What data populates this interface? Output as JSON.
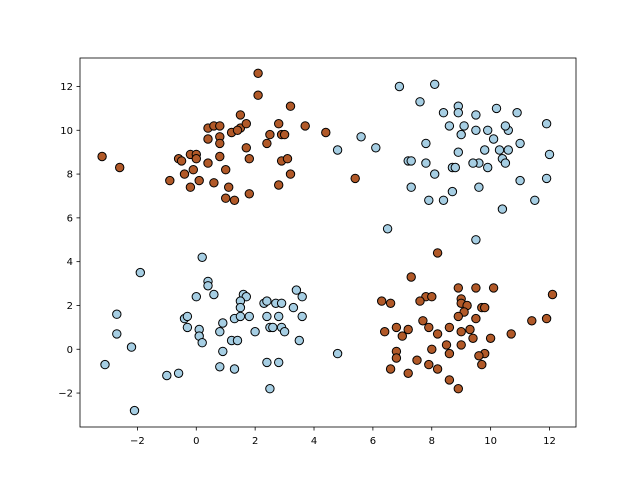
{
  "chart_data": {
    "type": "scatter",
    "xlim": [
      -3.95,
      12.9
    ],
    "ylim": [
      -3.55,
      13.3
    ],
    "x_ticks": [
      -2,
      0,
      2,
      4,
      6,
      8,
      10,
      12
    ],
    "y_ticks": [
      -2,
      0,
      2,
      4,
      6,
      8,
      10,
      12
    ],
    "x_tick_labels": [
      "−2",
      "0",
      "2",
      "4",
      "6",
      "8",
      "10",
      "12"
    ],
    "y_tick_labels": [
      "−2",
      "0",
      "2",
      "4",
      "6",
      "8",
      "10",
      "12"
    ],
    "grid": false,
    "marker_edge_color": "#000000",
    "series": [
      {
        "color": "#a6cee3",
        "points": [
          [
            6.9,
            12.0
          ],
          [
            8.1,
            12.1
          ],
          [
            7.6,
            11.3
          ],
          [
            8.9,
            11.1
          ],
          [
            8.9,
            10.8
          ],
          [
            9.5,
            10.7
          ],
          [
            10.2,
            11.0
          ],
          [
            10.9,
            10.8
          ],
          [
            8.4,
            10.8
          ],
          [
            8.6,
            10.2
          ],
          [
            9.1,
            10.2
          ],
          [
            9.5,
            10.0
          ],
          [
            9.9,
            10.0
          ],
          [
            10.6,
            10.0
          ],
          [
            10.5,
            10.2
          ],
          [
            11.9,
            10.3
          ],
          [
            9.0,
            9.8
          ],
          [
            10.1,
            9.6
          ],
          [
            10.3,
            9.1
          ],
          [
            11.0,
            9.4
          ],
          [
            9.8,
            9.1
          ],
          [
            10.6,
            9.1
          ],
          [
            12.0,
            8.9
          ],
          [
            5.6,
            9.7
          ],
          [
            4.8,
            9.1
          ],
          [
            6.1,
            9.2
          ],
          [
            7.8,
            9.4
          ],
          [
            8.9,
            9.0
          ],
          [
            7.2,
            8.6
          ],
          [
            7.3,
            8.6
          ],
          [
            7.8,
            8.5
          ],
          [
            9.6,
            8.5
          ],
          [
            9.4,
            8.5
          ],
          [
            10.4,
            8.7
          ],
          [
            10.5,
            8.5
          ],
          [
            8.7,
            8.3
          ],
          [
            8.8,
            8.3
          ],
          [
            9.9,
            8.3
          ],
          [
            8.1,
            8.0
          ],
          [
            11.9,
            7.8
          ],
          [
            11.0,
            7.7
          ],
          [
            9.6,
            7.4
          ],
          [
            7.3,
            7.4
          ],
          [
            8.7,
            7.2
          ],
          [
            7.9,
            6.8
          ],
          [
            8.4,
            6.8
          ],
          [
            11.5,
            6.8
          ],
          [
            10.4,
            6.4
          ],
          [
            6.5,
            5.5
          ],
          [
            9.5,
            5.0
          ],
          [
            0.2,
            4.2
          ],
          [
            -1.9,
            3.5
          ],
          [
            0.4,
            3.1
          ],
          [
            0.4,
            2.9
          ],
          [
            1.6,
            2.5
          ],
          [
            3.4,
            2.7
          ],
          [
            0.0,
            2.4
          ],
          [
            0.6,
            2.5
          ],
          [
            1.7,
            2.4
          ],
          [
            3.6,
            2.4
          ],
          [
            1.5,
            2.2
          ],
          [
            2.3,
            2.1
          ],
          [
            2.4,
            2.2
          ],
          [
            2.7,
            2.1
          ],
          [
            2.9,
            2.1
          ],
          [
            1.5,
            1.9
          ],
          [
            3.3,
            1.9
          ],
          [
            -2.7,
            1.6
          ],
          [
            -0.4,
            1.4
          ],
          [
            -0.3,
            1.5
          ],
          [
            1.3,
            1.4
          ],
          [
            1.5,
            1.5
          ],
          [
            1.8,
            1.5
          ],
          [
            2.4,
            1.5
          ],
          [
            2.8,
            1.5
          ],
          [
            3.6,
            1.5
          ],
          [
            0.9,
            1.2
          ],
          [
            -0.3,
            1.0
          ],
          [
            2.0,
            0.8
          ],
          [
            2.5,
            1.0
          ],
          [
            2.6,
            1.0
          ],
          [
            2.9,
            1.0
          ],
          [
            0.1,
            0.9
          ],
          [
            0.8,
            0.8
          ],
          [
            3.0,
            0.8
          ],
          [
            -2.7,
            0.7
          ],
          [
            0.1,
            0.6
          ],
          [
            1.2,
            0.4
          ],
          [
            1.4,
            0.4
          ],
          [
            3.5,
            0.4
          ],
          [
            0.2,
            0.3
          ],
          [
            -2.2,
            0.1
          ],
          [
            0.9,
            -0.1
          ],
          [
            4.8,
            -0.2
          ],
          [
            2.4,
            -0.6
          ],
          [
            2.8,
            -0.6
          ],
          [
            -3.1,
            -0.7
          ],
          [
            0.8,
            -0.8
          ],
          [
            1.3,
            -0.9
          ],
          [
            -1.0,
            -1.2
          ],
          [
            -0.6,
            -1.1
          ],
          [
            2.5,
            -1.8
          ],
          [
            -2.1,
            -2.8
          ]
        ]
      },
      {
        "color": "#b15928",
        "points": [
          [
            2.1,
            12.6
          ],
          [
            2.1,
            11.6
          ],
          [
            3.2,
            11.1
          ],
          [
            1.5,
            10.7
          ],
          [
            0.4,
            10.1
          ],
          [
            0.6,
            10.2
          ],
          [
            0.8,
            10.2
          ],
          [
            1.5,
            10.1
          ],
          [
            1.7,
            10.3
          ],
          [
            2.8,
            10.3
          ],
          [
            3.7,
            10.2
          ],
          [
            1.2,
            9.9
          ],
          [
            1.4,
            10.0
          ],
          [
            2.5,
            9.8
          ],
          [
            2.9,
            9.8
          ],
          [
            3.0,
            9.8
          ],
          [
            4.4,
            9.9
          ],
          [
            0.4,
            9.6
          ],
          [
            0.8,
            9.7
          ],
          [
            2.4,
            9.4
          ],
          [
            0.8,
            9.4
          ],
          [
            1.7,
            9.2
          ],
          [
            -0.2,
            8.9
          ],
          [
            0.0,
            8.9
          ],
          [
            0.0,
            8.7
          ],
          [
            0.8,
            8.8
          ],
          [
            1.8,
            8.7
          ],
          [
            -3.2,
            8.8
          ],
          [
            -0.6,
            8.7
          ],
          [
            -0.5,
            8.6
          ],
          [
            0.4,
            8.5
          ],
          [
            2.9,
            8.6
          ],
          [
            3.1,
            8.7
          ],
          [
            -2.6,
            8.3
          ],
          [
            -0.1,
            8.2
          ],
          [
            1.0,
            8.2
          ],
          [
            -0.4,
            8.0
          ],
          [
            3.2,
            8.0
          ],
          [
            5.4,
            7.8
          ],
          [
            -0.9,
            7.7
          ],
          [
            0.1,
            7.7
          ],
          [
            0.6,
            7.6
          ],
          [
            1.1,
            7.4
          ],
          [
            -0.2,
            7.4
          ],
          [
            2.8,
            7.5
          ],
          [
            1.8,
            7.1
          ],
          [
            1.0,
            6.9
          ],
          [
            1.3,
            6.8
          ],
          [
            8.2,
            4.4
          ],
          [
            7.3,
            3.3
          ],
          [
            8.9,
            2.8
          ],
          [
            9.5,
            2.8
          ],
          [
            10.1,
            2.8
          ],
          [
            12.1,
            2.5
          ],
          [
            7.8,
            2.4
          ],
          [
            8.0,
            2.4
          ],
          [
            9.0,
            2.3
          ],
          [
            6.3,
            2.2
          ],
          [
            7.6,
            2.2
          ],
          [
            9.0,
            2.1
          ],
          [
            6.6,
            2.1
          ],
          [
            9.2,
            2.0
          ],
          [
            9.7,
            1.9
          ],
          [
            9.8,
            1.9
          ],
          [
            9.1,
            1.7
          ],
          [
            8.9,
            1.5
          ],
          [
            11.9,
            1.4
          ],
          [
            9.5,
            1.4
          ],
          [
            7.7,
            1.3
          ],
          [
            11.4,
            1.3
          ],
          [
            7.9,
            1.0
          ],
          [
            8.6,
            1.0
          ],
          [
            6.8,
            1.0
          ],
          [
            7.2,
            0.9
          ],
          [
            9.3,
            0.9
          ],
          [
            6.4,
            0.8
          ],
          [
            7.0,
            0.6
          ],
          [
            8.2,
            0.7
          ],
          [
            9.0,
            0.8
          ],
          [
            10.7,
            0.7
          ],
          [
            9.4,
            0.5
          ],
          [
            10.0,
            0.5
          ],
          [
            8.5,
            0.2
          ],
          [
            9.0,
            0.2
          ],
          [
            6.8,
            -0.1
          ],
          [
            8.0,
            0.0
          ],
          [
            8.6,
            -0.2
          ],
          [
            9.8,
            -0.2
          ],
          [
            9.6,
            -0.3
          ],
          [
            6.8,
            -0.4
          ],
          [
            7.5,
            -0.5
          ],
          [
            9.7,
            -0.7
          ],
          [
            8.2,
            -0.9
          ],
          [
            6.6,
            -0.9
          ],
          [
            7.2,
            -1.1
          ],
          [
            8.6,
            -1.4
          ],
          [
            8.9,
            -1.8
          ],
          [
            7.9,
            -0.7
          ]
        ]
      }
    ]
  }
}
